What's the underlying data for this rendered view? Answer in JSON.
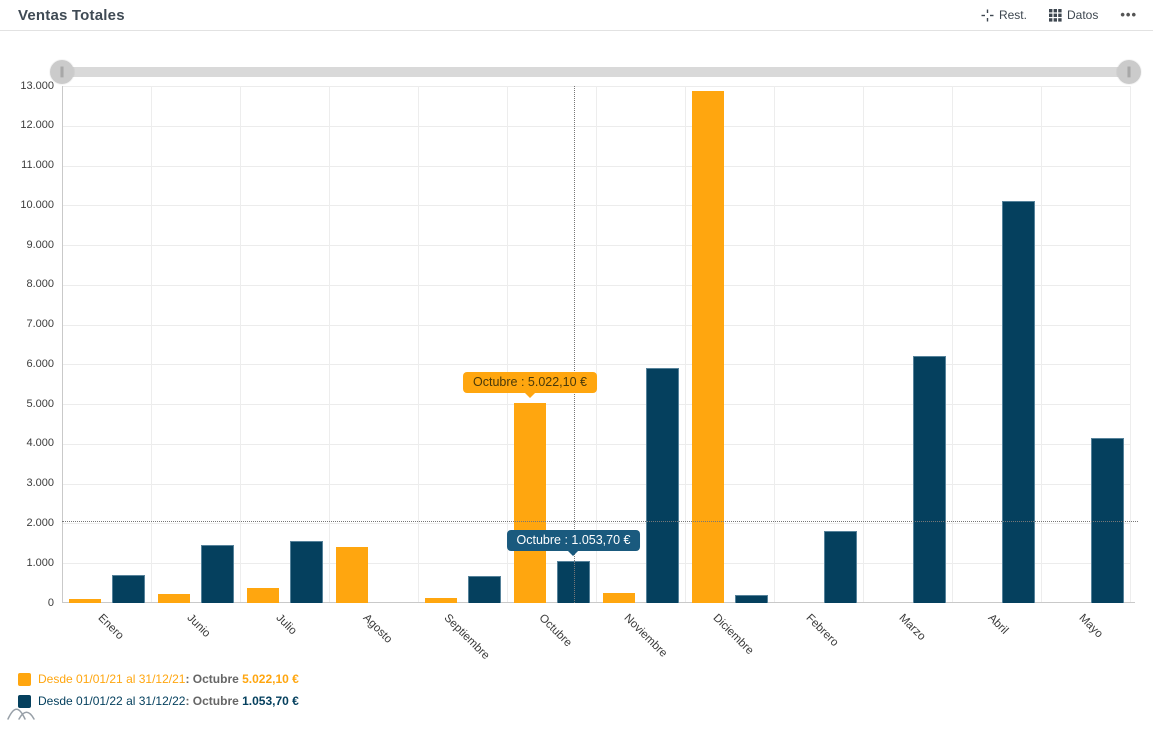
{
  "header": {
    "title": "Ventas Totales",
    "rest_label": "Rest.",
    "datos_label": "Datos",
    "more_label": "•••"
  },
  "slider": {
    "handle_glyph": "∥"
  },
  "colors": {
    "series1_orange": "#FFA60F",
    "series2_blue": "#05405E",
    "tooltip_orange_bg": "#FFA60F",
    "tooltip_blue_bg": "#1A5A7E",
    "legend_muted_text": "#666666",
    "gridline": "#ECECEC",
    "axis_line": "#C9C9C9",
    "crosshair_dotted": "#777777",
    "title_text": "#3F4A54"
  },
  "chart_data": {
    "type": "bar",
    "title": "Ventas Totales",
    "categories": [
      "Enero",
      "Junio",
      "Julio",
      "Agosto",
      "Septiembre",
      "Octubre",
      "Noviembre",
      "Diciembre",
      "Febrero",
      "Marzo",
      "Abril",
      "Mayo"
    ],
    "series": [
      {
        "name": "Desde 01/01/21 al 31/12/21",
        "color": "#FFA60F",
        "values": [
          100,
          230,
          380,
          1400,
          120,
          5022.1,
          250,
          12870,
          null,
          null,
          null,
          null
        ]
      },
      {
        "name": "Desde 01/01/22 al 31/12/22",
        "color": "#05405E",
        "values": [
          700,
          1450,
          1560,
          null,
          680,
          1053.7,
          5900,
          200,
          1800,
          6200,
          10100,
          4150
        ]
      }
    ],
    "ylim": [
      0,
      13000
    ],
    "ytick_step": 1000,
    "ytick_labels": [
      "0",
      "1.000",
      "2.000",
      "3.000",
      "4.000",
      "5.000",
      "6.000",
      "7.000",
      "8.000",
      "9.000",
      "10.000",
      "11.000",
      "12.000",
      "13.000"
    ],
    "grid": true,
    "legend_position": "bottom-left",
    "highlight": {
      "category": "Octubre",
      "category_index": 5,
      "crosshair_y_value": 2050,
      "tooltips": [
        {
          "series": "Desde 01/01/21 al 31/12/21",
          "text": "Octubre : 5.022,10 €"
        },
        {
          "series": "Desde 01/01/22 al 31/12/22",
          "text": "Octubre : 1.053,70 €"
        }
      ]
    },
    "legend": [
      {
        "label": "Desde 01/01/21 al 31/12/21",
        "middle": ": Octubre",
        "value": "5.022,10 €"
      },
      {
        "label": "Desde 01/01/22 al 31/12/22",
        "middle": ": Octubre",
        "value": "1.053,70 €"
      }
    ]
  }
}
